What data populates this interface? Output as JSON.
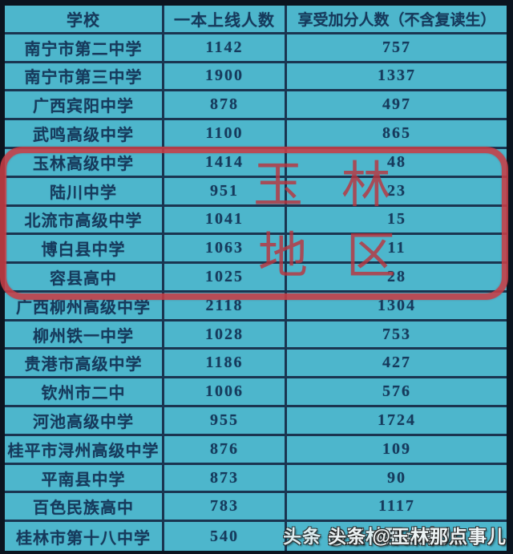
{
  "table": {
    "columns": [
      "学校",
      "一本上线人数",
      "享受加分人数（不含复读生）"
    ],
    "rows": [
      {
        "school": "南宁市第二中学",
        "tier1": "1142",
        "bonus": "757",
        "highlighted": false
      },
      {
        "school": "南宁市第三中学",
        "tier1": "1900",
        "bonus": "1337",
        "highlighted": false
      },
      {
        "school": "广西宾阳中学",
        "tier1": "878",
        "bonus": "497",
        "highlighted": false
      },
      {
        "school": "武鸣高级中学",
        "tier1": "1100",
        "bonus": "865",
        "highlighted": false
      },
      {
        "school": "玉林高级中学",
        "tier1": "1414",
        "bonus": "48",
        "highlighted": true
      },
      {
        "school": "陆川中学",
        "tier1": "951",
        "bonus": "23",
        "highlighted": true
      },
      {
        "school": "北流市高级中学",
        "tier1": "1041",
        "bonus": "15",
        "highlighted": true
      },
      {
        "school": "博白县中学",
        "tier1": "1063",
        "bonus": "11",
        "highlighted": true
      },
      {
        "school": "容县高中",
        "tier1": "1025",
        "bonus": "28",
        "highlighted": true
      },
      {
        "school": "广西柳州高级中学",
        "tier1": "2118",
        "bonus": "1304",
        "highlighted": false
      },
      {
        "school": "柳州铁一中学",
        "tier1": "1028",
        "bonus": "753",
        "highlighted": false
      },
      {
        "school": "贵港市高级中学",
        "tier1": "1186",
        "bonus": "427",
        "highlighted": false
      },
      {
        "school": "钦州市二中",
        "tier1": "1006",
        "bonus": "576",
        "highlighted": false
      },
      {
        "school": "河池高级中学",
        "tier1": "955",
        "bonus": "1724",
        "highlighted": false
      },
      {
        "school": "桂平市浔州高级中学",
        "tier1": "876",
        "bonus": "109",
        "highlighted": false
      },
      {
        "school": "平南县中学",
        "tier1": "873",
        "bonus": "90",
        "highlighted": false
      },
      {
        "school": "百色民族高中",
        "tier1": "783",
        "bonus": "1117",
        "highlighted": false
      },
      {
        "school": "桂林市第十八中学",
        "tier1": "540",
        "bonus": "",
        "highlighted": false
      }
    ]
  },
  "highlight": {
    "region_label": "玉林地区",
    "label_line1": "玉 林",
    "label_line2": "地 区",
    "box_color": "#c73e46",
    "highlighted_schools": [
      "玉林高级中学",
      "陆川中学",
      "北流市高级中学",
      "博白县中学",
      "容县高中"
    ]
  },
  "watermark": {
    "text": "头条 @玉林那点事儿",
    "layers": [
      "头条 @玉林那点事儿",
      "头条 @玉林那点事儿"
    ]
  },
  "colors": {
    "cell_background": "#4db6cc",
    "grid_line": "#1a3550",
    "outer_frame": "#0b141f",
    "text": "#163a5c",
    "highlight_red": "#c73e46"
  },
  "chart_data": {
    "type": "table",
    "title": "",
    "columns": [
      "学校",
      "一本上线人数",
      "享受加分人数（不含复读生）"
    ],
    "rows": [
      [
        "南宁市第二中学",
        1142,
        757
      ],
      [
        "南宁市第三中学",
        1900,
        1337
      ],
      [
        "广西宾阳中学",
        878,
        497
      ],
      [
        "武鸣高级中学",
        1100,
        865
      ],
      [
        "玉林高级中学",
        1414,
        48
      ],
      [
        "陆川中学",
        951,
        23
      ],
      [
        "北流市高级中学",
        1041,
        15
      ],
      [
        "博白县中学",
        1063,
        11
      ],
      [
        "容县高中",
        1025,
        28
      ],
      [
        "广西柳州高级中学",
        2118,
        1304
      ],
      [
        "柳州铁一中学",
        1028,
        753
      ],
      [
        "贵港市高级中学",
        1186,
        427
      ],
      [
        "钦州市二中",
        1006,
        576
      ],
      [
        "河池高级中学",
        955,
        1724
      ],
      [
        "桂平市浔州高级中学",
        876,
        109
      ],
      [
        "平南县中学",
        873,
        90
      ],
      [
        "百色民族高中",
        783,
        1117
      ],
      [
        "桂林市第十八中学",
        540,
        null
      ]
    ],
    "annotations": [
      {
        "type": "red-rounded-box",
        "text": "玉林地区",
        "covers_rows": [
          5,
          6,
          7,
          8,
          9
        ]
      }
    ],
    "legend_position": "none",
    "grid": true
  }
}
